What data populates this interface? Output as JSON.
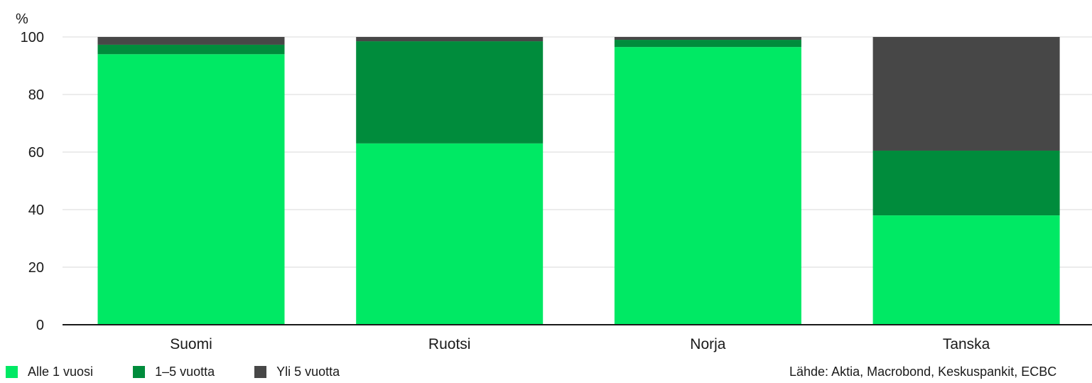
{
  "chart_data": {
    "type": "bar",
    "stacked": true,
    "ylabel": "%",
    "ylim": [
      0,
      100
    ],
    "yticks": [
      "0",
      "20",
      "40",
      "60",
      "80",
      "100"
    ],
    "grid": true,
    "categories": [
      "Suomi",
      "Ruotsi",
      "Norja",
      "Tanska"
    ],
    "series": [
      {
        "name": "Alle 1 vuosi",
        "color": "#00E964",
        "values": [
          94,
          63,
          96.5,
          38
        ]
      },
      {
        "name": "1–5 vuotta",
        "color": "#008C3C",
        "values": [
          3.3,
          35.5,
          2.5,
          22.5
        ]
      },
      {
        "name": "Yli 5 vuotta",
        "color": "#474747",
        "values": [
          2.7,
          1.5,
          1,
          39.5
        ]
      }
    ],
    "legend_position": "bottom-left"
  },
  "legend": {
    "items": [
      {
        "label": "Alle 1 vuosi",
        "color": "#00E964"
      },
      {
        "label": "1–5 vuotta",
        "color": "#008C3C"
      },
      {
        "label": "Yli 5 vuotta",
        "color": "#474747"
      }
    ]
  },
  "source": "Lähde: Aktia, Macrobond, Keskuspankit, ECBC"
}
